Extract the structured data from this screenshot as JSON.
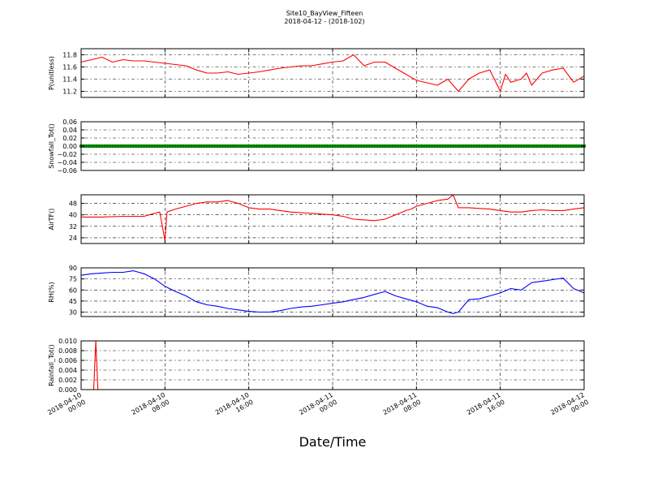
{
  "figure": {
    "title": "Site10_BayView_Fifteen",
    "subtitle": "2018-04-12 - (2018-102)",
    "xlabel": "Date/Time"
  },
  "chart_data": [
    {
      "type": "line",
      "ylabel": "P(unitless)",
      "color": "#ff0000",
      "ylim": [
        11.1,
        11.9
      ],
      "yticks": [
        11.2,
        11.4,
        11.6,
        11.8
      ],
      "ytick_labels": [
        "11.2",
        "11.4",
        "11.6",
        "11.8"
      ],
      "x_hours": [
        0,
        2,
        3,
        4,
        5,
        6,
        7,
        8,
        9,
        10,
        11,
        12,
        13,
        14,
        15,
        16,
        17,
        18,
        19,
        20,
        21,
        22,
        23,
        24,
        25,
        26,
        27,
        28,
        29,
        30,
        31,
        32,
        33,
        34,
        35,
        36,
        37,
        38,
        39,
        40,
        40.5,
        41,
        42,
        42.5,
        43,
        44,
        45,
        46,
        47,
        48
      ],
      "values": [
        11.68,
        11.76,
        11.68,
        11.72,
        11.7,
        11.7,
        11.68,
        11.66,
        11.64,
        11.62,
        11.55,
        11.5,
        11.5,
        11.52,
        11.48,
        11.5,
        11.52,
        11.55,
        11.58,
        11.6,
        11.62,
        11.62,
        11.65,
        11.68,
        11.7,
        11.8,
        11.62,
        11.68,
        11.68,
        11.58,
        11.48,
        11.38,
        11.34,
        11.3,
        11.4,
        11.2,
        11.4,
        11.5,
        11.55,
        11.2,
        11.48,
        11.35,
        11.4,
        11.5,
        11.3,
        11.5,
        11.55,
        11.58,
        11.35,
        11.45
      ],
      "grid": true
    },
    {
      "type": "scatter",
      "ylabel": "Snowfall_Tot()",
      "color": "#007f00",
      "ylim": [
        -0.06,
        0.06
      ],
      "yticks": [
        -0.06,
        -0.04,
        -0.02,
        0.0,
        0.02,
        0.04,
        0.06
      ],
      "ytick_labels": [
        "−0.06",
        "−0.04",
        "−0.02",
        "0.00",
        "0.02",
        "0.04",
        "0.06"
      ],
      "constant_value": 0.0,
      "grid": true
    },
    {
      "type": "line",
      "ylabel": "AirTF()",
      "color": "#ff0000",
      "ylim": [
        20,
        54
      ],
      "yticks": [
        24,
        32,
        40,
        48
      ],
      "ytick_labels": [
        "24",
        "32",
        "40",
        "48"
      ],
      "x_hours": [
        0,
        2,
        4,
        6,
        6.5,
        7,
        7.5,
        7.8,
        8.0,
        8.2,
        9,
        10,
        11,
        12,
        13,
        14,
        15,
        16,
        17,
        18,
        19,
        20,
        22,
        24,
        25,
        26,
        27,
        28,
        29,
        30,
        31,
        31.5,
        32,
        33,
        34,
        35,
        35.5,
        36,
        37,
        38,
        39,
        40,
        41,
        42,
        43,
        44,
        45,
        46,
        47,
        48
      ],
      "values": [
        38.5,
        38.5,
        39,
        39,
        40,
        41,
        42,
        30,
        22,
        42,
        44,
        46,
        48,
        49,
        49,
        50,
        48,
        45,
        44,
        44,
        43,
        42,
        41,
        40,
        39,
        37,
        36.5,
        36,
        37,
        40,
        43,
        44,
        46,
        48,
        50,
        51,
        54,
        45,
        45,
        44.5,
        44,
        43,
        42,
        42,
        43,
        43.5,
        43,
        43,
        44,
        45
      ],
      "grid": true
    },
    {
      "type": "line",
      "ylabel": "RH(%)",
      "color": "#0000ff",
      "ylim": [
        24,
        90
      ],
      "yticks": [
        30,
        45,
        60,
        75,
        90
      ],
      "ytick_labels": [
        "30",
        "45",
        "60",
        "75",
        "90"
      ],
      "x_hours": [
        0,
        1,
        2,
        3,
        4,
        5,
        6,
        7,
        8,
        9,
        10,
        11,
        12,
        13,
        14,
        15,
        16,
        17,
        18,
        19,
        20,
        21,
        22,
        23,
        24,
        25,
        26,
        27,
        28,
        29,
        30,
        31,
        32,
        33,
        34,
        35,
        35.5,
        36,
        37,
        38,
        39,
        40,
        41,
        42,
        43,
        44,
        45,
        46,
        47,
        48
      ],
      "values": [
        80,
        82,
        83,
        84,
        84,
        86,
        82,
        75,
        65,
        58,
        52,
        44,
        40,
        38,
        35,
        33,
        31,
        30,
        30,
        32,
        35,
        37,
        38,
        40,
        42,
        44,
        47,
        50,
        54,
        58,
        52,
        48,
        44,
        38,
        36,
        30,
        28,
        30,
        47,
        48,
        52,
        56,
        62,
        60,
        70,
        72,
        74,
        76,
        62,
        56
      ],
      "grid": true
    },
    {
      "type": "line",
      "ylabel": "Rainfall_Tot()",
      "color": "#ff0000",
      "ylim": [
        0.0,
        0.01
      ],
      "yticks": [
        0.0,
        0.002,
        0.004,
        0.006,
        0.008,
        0.01
      ],
      "ytick_labels": [
        "0.000",
        "0.002",
        "0.004",
        "0.006",
        "0.008",
        "0.010"
      ],
      "x_hours": [
        0,
        1.2,
        1.4,
        1.6,
        48
      ],
      "values": [
        0,
        0,
        0.01,
        0,
        0
      ],
      "grid": true
    }
  ],
  "x_axis": {
    "xlim_hours": [
      0,
      48
    ],
    "tick_hours": [
      0,
      8,
      16,
      24,
      32,
      40,
      48
    ],
    "tick_labels": [
      [
        "2018-04-10",
        "00:00"
      ],
      [
        "2018-04-10",
        "08:00"
      ],
      [
        "2018-04-10",
        "16:00"
      ],
      [
        "2018-04-11",
        "00:00"
      ],
      [
        "2018-04-11",
        "08:00"
      ],
      [
        "2018-04-11",
        "16:00"
      ],
      [
        "2018-04-12",
        "00:00"
      ]
    ]
  }
}
